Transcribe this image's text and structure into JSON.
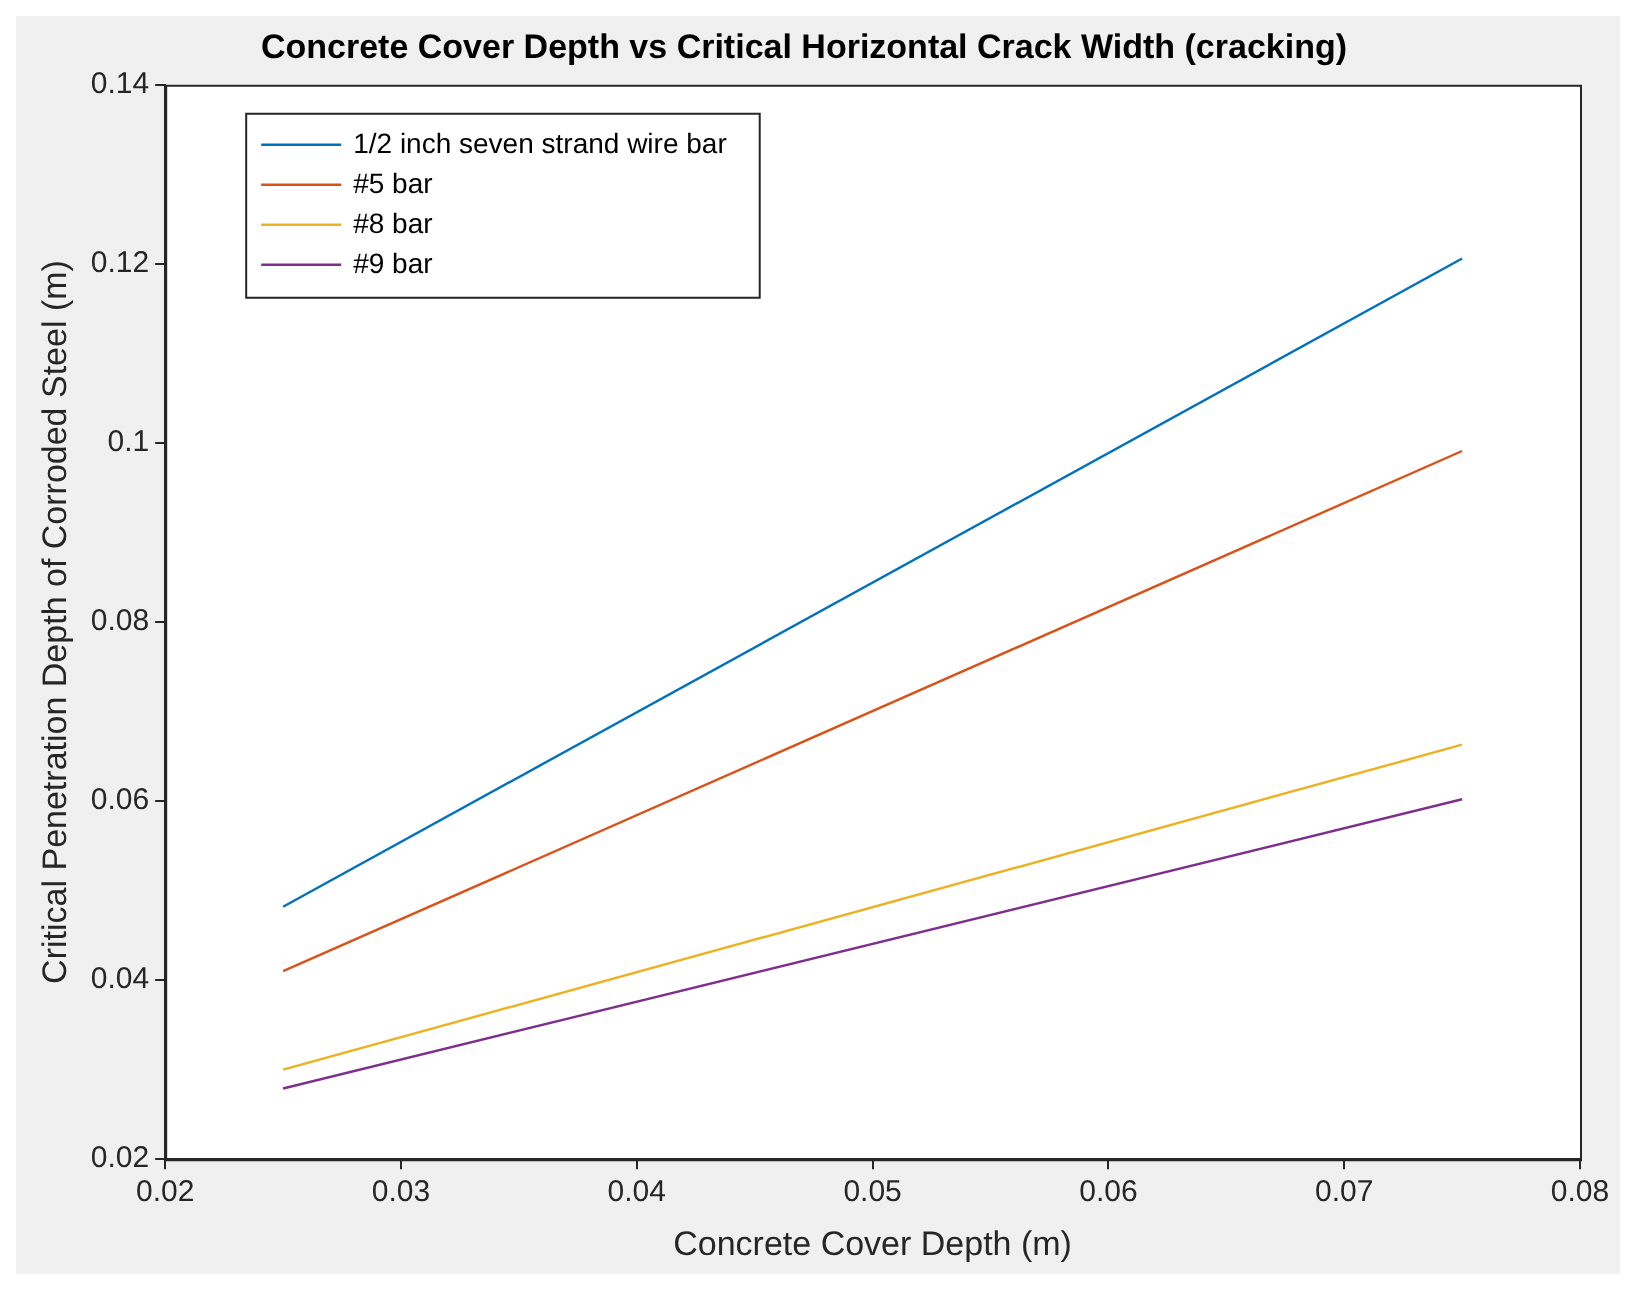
{
  "chart_data": {
    "type": "line",
    "title": "Concrete Cover Depth vs Critical Horizontal Crack Width (cracking)",
    "xlabel": "Concrete Cover Depth (m)",
    "ylabel": "Critical Penetration Depth of Corroded Steel (m)",
    "x": [
      0.025,
      0.075
    ],
    "series": [
      {
        "name": "1/2 inch seven strand wire bar",
        "color": "#0072bd",
        "values": [
          0.0482,
          0.1206
        ]
      },
      {
        "name": "#5 bar",
        "color": "#d95319",
        "values": [
          0.041,
          0.0991
        ]
      },
      {
        "name": "#8 bar",
        "color": "#edb120",
        "values": [
          0.03,
          0.0663
        ]
      },
      {
        "name": "#9 bar",
        "color": "#7e2f8e",
        "values": [
          0.0279,
          0.0602
        ]
      }
    ],
    "xlim": [
      0.02,
      0.08
    ],
    "xticks": [
      0.02,
      0.03,
      0.04,
      0.05,
      0.06,
      0.07,
      0.08
    ],
    "ylim": [
      0.02,
      0.14
    ],
    "yticks": [
      0.02,
      0.04,
      0.06,
      0.08,
      0.1,
      0.12,
      0.14
    ],
    "grid": false,
    "legend": "top left",
    "marker": "none",
    "line_style": "solid"
  }
}
